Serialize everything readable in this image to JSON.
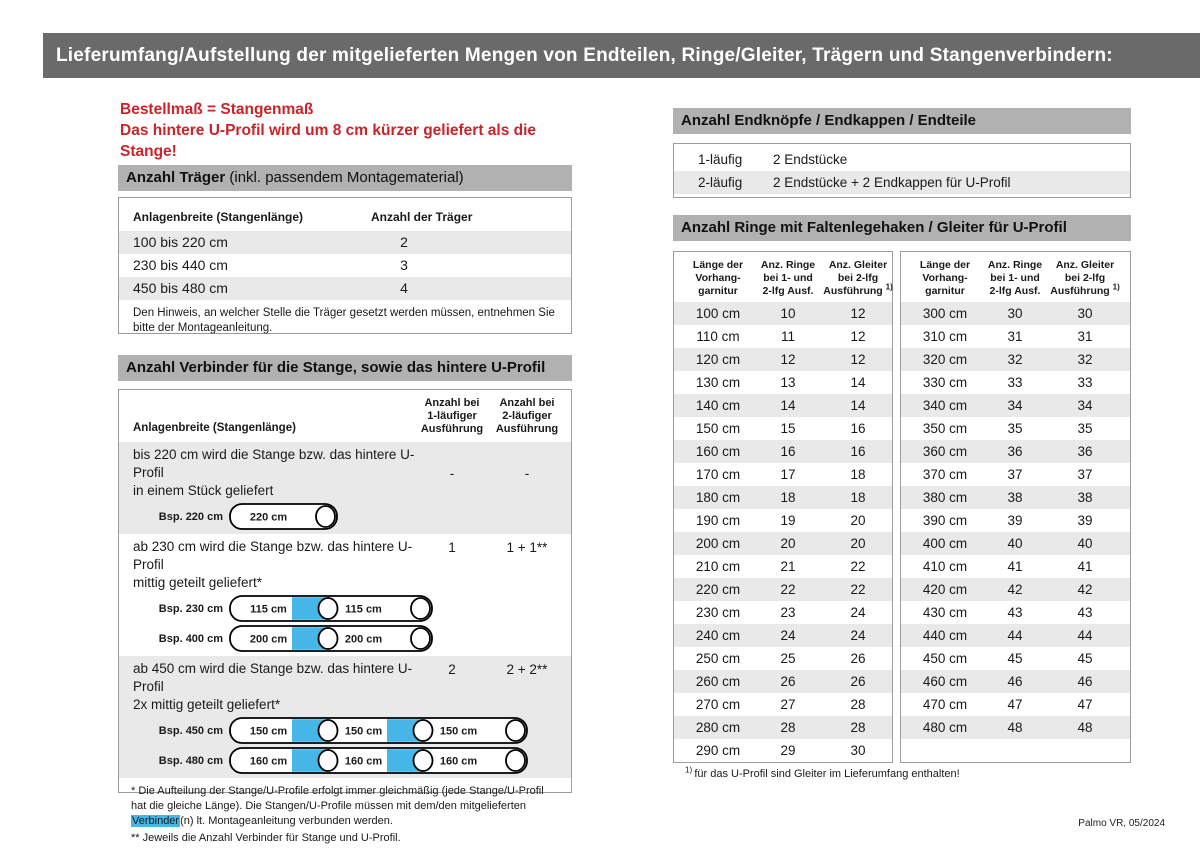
{
  "colors": {
    "topbar_gray": "#6a6a6a",
    "section_bar_gray": "#b1b1b1",
    "accent_red": "#cc2229",
    "connector_blue": "#45b6e7",
    "zebra_gray": "#e9e9e9",
    "box_border": "#9c9c9c"
  },
  "page": {
    "title": "Lieferumfang/Aufstellung der mitgelieferten Mengen von Endteilen, Ringe/Gleiter, Trägern und Stangenverbindern:",
    "footer": "Palmo VR, 05/2024"
  },
  "notice": {
    "text": "Bestellmaß = Stangenmaß\nDas hintere U-Profil wird um 8 cm kürzer geliefert als die Stange!"
  },
  "traeger": {
    "title_bold": "Anzahl Träger",
    "title_suffix": " (inkl. passendem Montagematerial)",
    "col1": "Anlagenbreite (Stangenlänge)",
    "col2": "Anzahl der Träger",
    "rows": [
      [
        "100 bis 220 cm",
        "2"
      ],
      [
        "230 bis 440 cm",
        "3"
      ],
      [
        "450 bis 480 cm",
        "4"
      ]
    ],
    "note": "Den Hinweis, an welcher Stelle die Träger gesetzt werden müssen, entnehmen Sie bitte der Montageanleitung."
  },
  "verbinder": {
    "title": "Anzahl Verbinder für die Stange, sowie das hintere U-Profil",
    "col1": "Anlagenbreite (Stangenlänge)",
    "col2": "Anzahl bei\n1-läufiger\nAusführung",
    "col3": "Anzahl bei\n2-läufiger\nAusführung",
    "rows": [
      {
        "text": "bis 220 cm wird die Stange bzw. das hintere U-Profil\nin einem Stück geliefert",
        "v1": "-",
        "v2": "-",
        "examples": [
          {
            "label": "Bsp. 220 cm",
            "segments": [
              "220 cm"
            ]
          }
        ]
      },
      {
        "text": "ab 230 cm wird die Stange bzw. das hintere U-Profil\nmittig geteilt geliefert*",
        "v1": "1",
        "v2": "1 + 1**",
        "examples": [
          {
            "label": "Bsp. 230 cm",
            "segments": [
              "115 cm",
              "115 cm"
            ]
          },
          {
            "label": "Bsp. 400 cm",
            "segments": [
              "200 cm",
              "200 cm"
            ]
          }
        ]
      },
      {
        "text": "ab 450 cm wird die Stange bzw. das hintere U-Profil\n2x mittig geteilt geliefert*",
        "v1": "2",
        "v2": "2 + 2**",
        "examples": [
          {
            "label": "Bsp. 450 cm",
            "segments": [
              "150 cm",
              "150 cm",
              "150 cm"
            ]
          },
          {
            "label": "Bsp. 480 cm",
            "segments": [
              "160 cm",
              "160 cm",
              "160 cm"
            ]
          }
        ]
      }
    ],
    "footnote1_pre": "* Die Aufteilung der Stange/U-Profile erfolgt immer gleichmäßig (jede Stange/U-Profil hat die gleiche Länge). Die Stangen/U-Profile müssen mit dem/den mitgelieferten ",
    "footnote1_highlight": "Verbinder",
    "footnote1_post": "(n) lt. Montageanleitung verbunden werden.",
    "footnote2": "** Jeweils die Anzahl Verbinder für Stange und U-Profil."
  },
  "endteile": {
    "title": "Anzahl Endknöpfe / Endkappen / Endteile",
    "rows": [
      [
        "1-läufig",
        "2 Endstücke"
      ],
      [
        "2-läufig",
        "2 Endstücke + 2 Endkappen für U-Profil"
      ]
    ]
  },
  "ringe": {
    "title": "Anzahl Ringe mit Faltenlegehaken / Gleiter für U-Profil",
    "col1": "Länge der\nVorhang-\ngarnitur",
    "col2": "Anz. Ringe\nbei 1- und\n2-lfg Ausf.",
    "col3_l12": "Anz. Gleiter\nbei 2-lfg",
    "col3_l3": "Ausführung ",
    "col3_sup": "1)",
    "left_rows": [
      [
        "100 cm",
        "10",
        "12"
      ],
      [
        "110 cm",
        "11",
        "12"
      ],
      [
        "120 cm",
        "12",
        "12"
      ],
      [
        "130 cm",
        "13",
        "14"
      ],
      [
        "140 cm",
        "14",
        "14"
      ],
      [
        "150 cm",
        "15",
        "16"
      ],
      [
        "160 cm",
        "16",
        "16"
      ],
      [
        "170 cm",
        "17",
        "18"
      ],
      [
        "180 cm",
        "18",
        "18"
      ],
      [
        "190 cm",
        "19",
        "20"
      ],
      [
        "200 cm",
        "20",
        "20"
      ],
      [
        "210 cm",
        "21",
        "22"
      ],
      [
        "220 cm",
        "22",
        "22"
      ],
      [
        "230 cm",
        "23",
        "24"
      ],
      [
        "240 cm",
        "24",
        "24"
      ],
      [
        "250 cm",
        "25",
        "26"
      ],
      [
        "260 cm",
        "26",
        "26"
      ],
      [
        "270 cm",
        "27",
        "28"
      ],
      [
        "280 cm",
        "28",
        "28"
      ],
      [
        "290 cm",
        "29",
        "30"
      ]
    ],
    "right_rows": [
      [
        "300 cm",
        "30",
        "30"
      ],
      [
        "310 cm",
        "31",
        "31"
      ],
      [
        "320 cm",
        "32",
        "32"
      ],
      [
        "330 cm",
        "33",
        "33"
      ],
      [
        "340 cm",
        "34",
        "34"
      ],
      [
        "350 cm",
        "35",
        "35"
      ],
      [
        "360 cm",
        "36",
        "36"
      ],
      [
        "370 cm",
        "37",
        "37"
      ],
      [
        "380 cm",
        "38",
        "38"
      ],
      [
        "390 cm",
        "39",
        "39"
      ],
      [
        "400 cm",
        "40",
        "40"
      ],
      [
        "410 cm",
        "41",
        "41"
      ],
      [
        "420 cm",
        "42",
        "42"
      ],
      [
        "430 cm",
        "43",
        "43"
      ],
      [
        "440 cm",
        "44",
        "44"
      ],
      [
        "450 cm",
        "45",
        "45"
      ],
      [
        "460 cm",
        "46",
        "46"
      ],
      [
        "470 cm",
        "47",
        "47"
      ],
      [
        "480 cm",
        "48",
        "48"
      ]
    ],
    "footnote_sup": "1) ",
    "footnote_text": "für das U-Profil sind Gleiter im Lieferumfang enthalten!"
  }
}
